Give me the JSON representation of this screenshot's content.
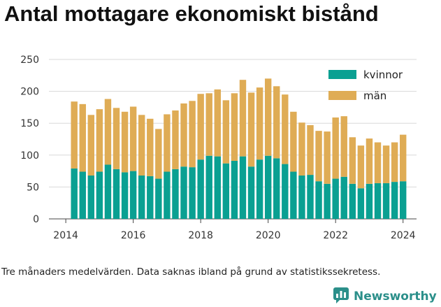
{
  "header": {
    "title": "Antal mottagare ekonomiskt bistånd"
  },
  "caption": "Tre månaders medelvärden. Data saknas ibland på grund av statistikssekretess.",
  "brand": {
    "name": "Newsworthy"
  },
  "colors": {
    "kvinnor": "#0aa092",
    "man": "#dfac55",
    "grid": "#d8d8d8",
    "brand": "#2b8f8a"
  },
  "chart_data": {
    "type": "bar",
    "stacked": true,
    "title": "Antal mottagare ekonomiskt bistånd",
    "xlabel": "",
    "ylabel": "",
    "xlim": [
      2013.5,
      2024.4
    ],
    "ylim": [
      0,
      250
    ],
    "yticks": [
      0,
      50,
      100,
      150,
      200,
      250
    ],
    "xticks": [
      2014,
      2016,
      2018,
      2020,
      2022,
      2024
    ],
    "legend": "top-right",
    "grid": "horizontal",
    "x": [
      2014.25,
      2014.5,
      2014.75,
      2015.0,
      2015.25,
      2015.5,
      2015.75,
      2016.0,
      2016.25,
      2016.5,
      2016.75,
      2017.0,
      2017.25,
      2017.5,
      2017.75,
      2018.0,
      2018.25,
      2018.5,
      2018.75,
      2019.0,
      2019.25,
      2019.5,
      2019.75,
      2020.0,
      2020.25,
      2020.5,
      2020.75,
      2021.0,
      2021.25,
      2021.5,
      2021.75,
      2022.0,
      2022.25,
      2022.5,
      2022.75,
      2023.0,
      2023.25,
      2023.5,
      2023.75,
      2024.0
    ],
    "series": [
      {
        "name": "kvinnor",
        "values": [
          79,
          74,
          68,
          74,
          85,
          78,
          73,
          75,
          68,
          67,
          63,
          74,
          78,
          82,
          81,
          93,
          99,
          98,
          87,
          91,
          98,
          82,
          93,
          99,
          95,
          86,
          74,
          68,
          69,
          59,
          55,
          63,
          66,
          55,
          48,
          55,
          56,
          56,
          58,
          59
        ]
      },
      {
        "name": "män",
        "values": [
          105,
          106,
          95,
          98,
          103,
          96,
          95,
          101,
          95,
          90,
          78,
          90,
          92,
          99,
          104,
          103,
          98,
          105,
          99,
          106,
          120,
          116,
          113,
          121,
          113,
          109,
          94,
          83,
          78,
          79,
          82,
          96,
          95,
          73,
          67,
          71,
          64,
          59,
          62,
          73
        ]
      }
    ]
  }
}
